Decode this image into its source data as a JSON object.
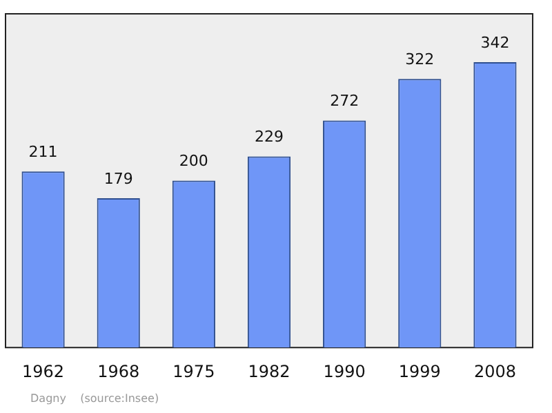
{
  "chart_data": {
    "type": "bar",
    "categories": [
      "1962",
      "1968",
      "1975",
      "1982",
      "1990",
      "1999",
      "2008"
    ],
    "values": [
      211,
      179,
      200,
      229,
      272,
      322,
      342
    ],
    "color": "#6f96f7",
    "data_labels": true,
    "annotations": [
      "Dagny    (source:Insee)"
    ]
  }
}
